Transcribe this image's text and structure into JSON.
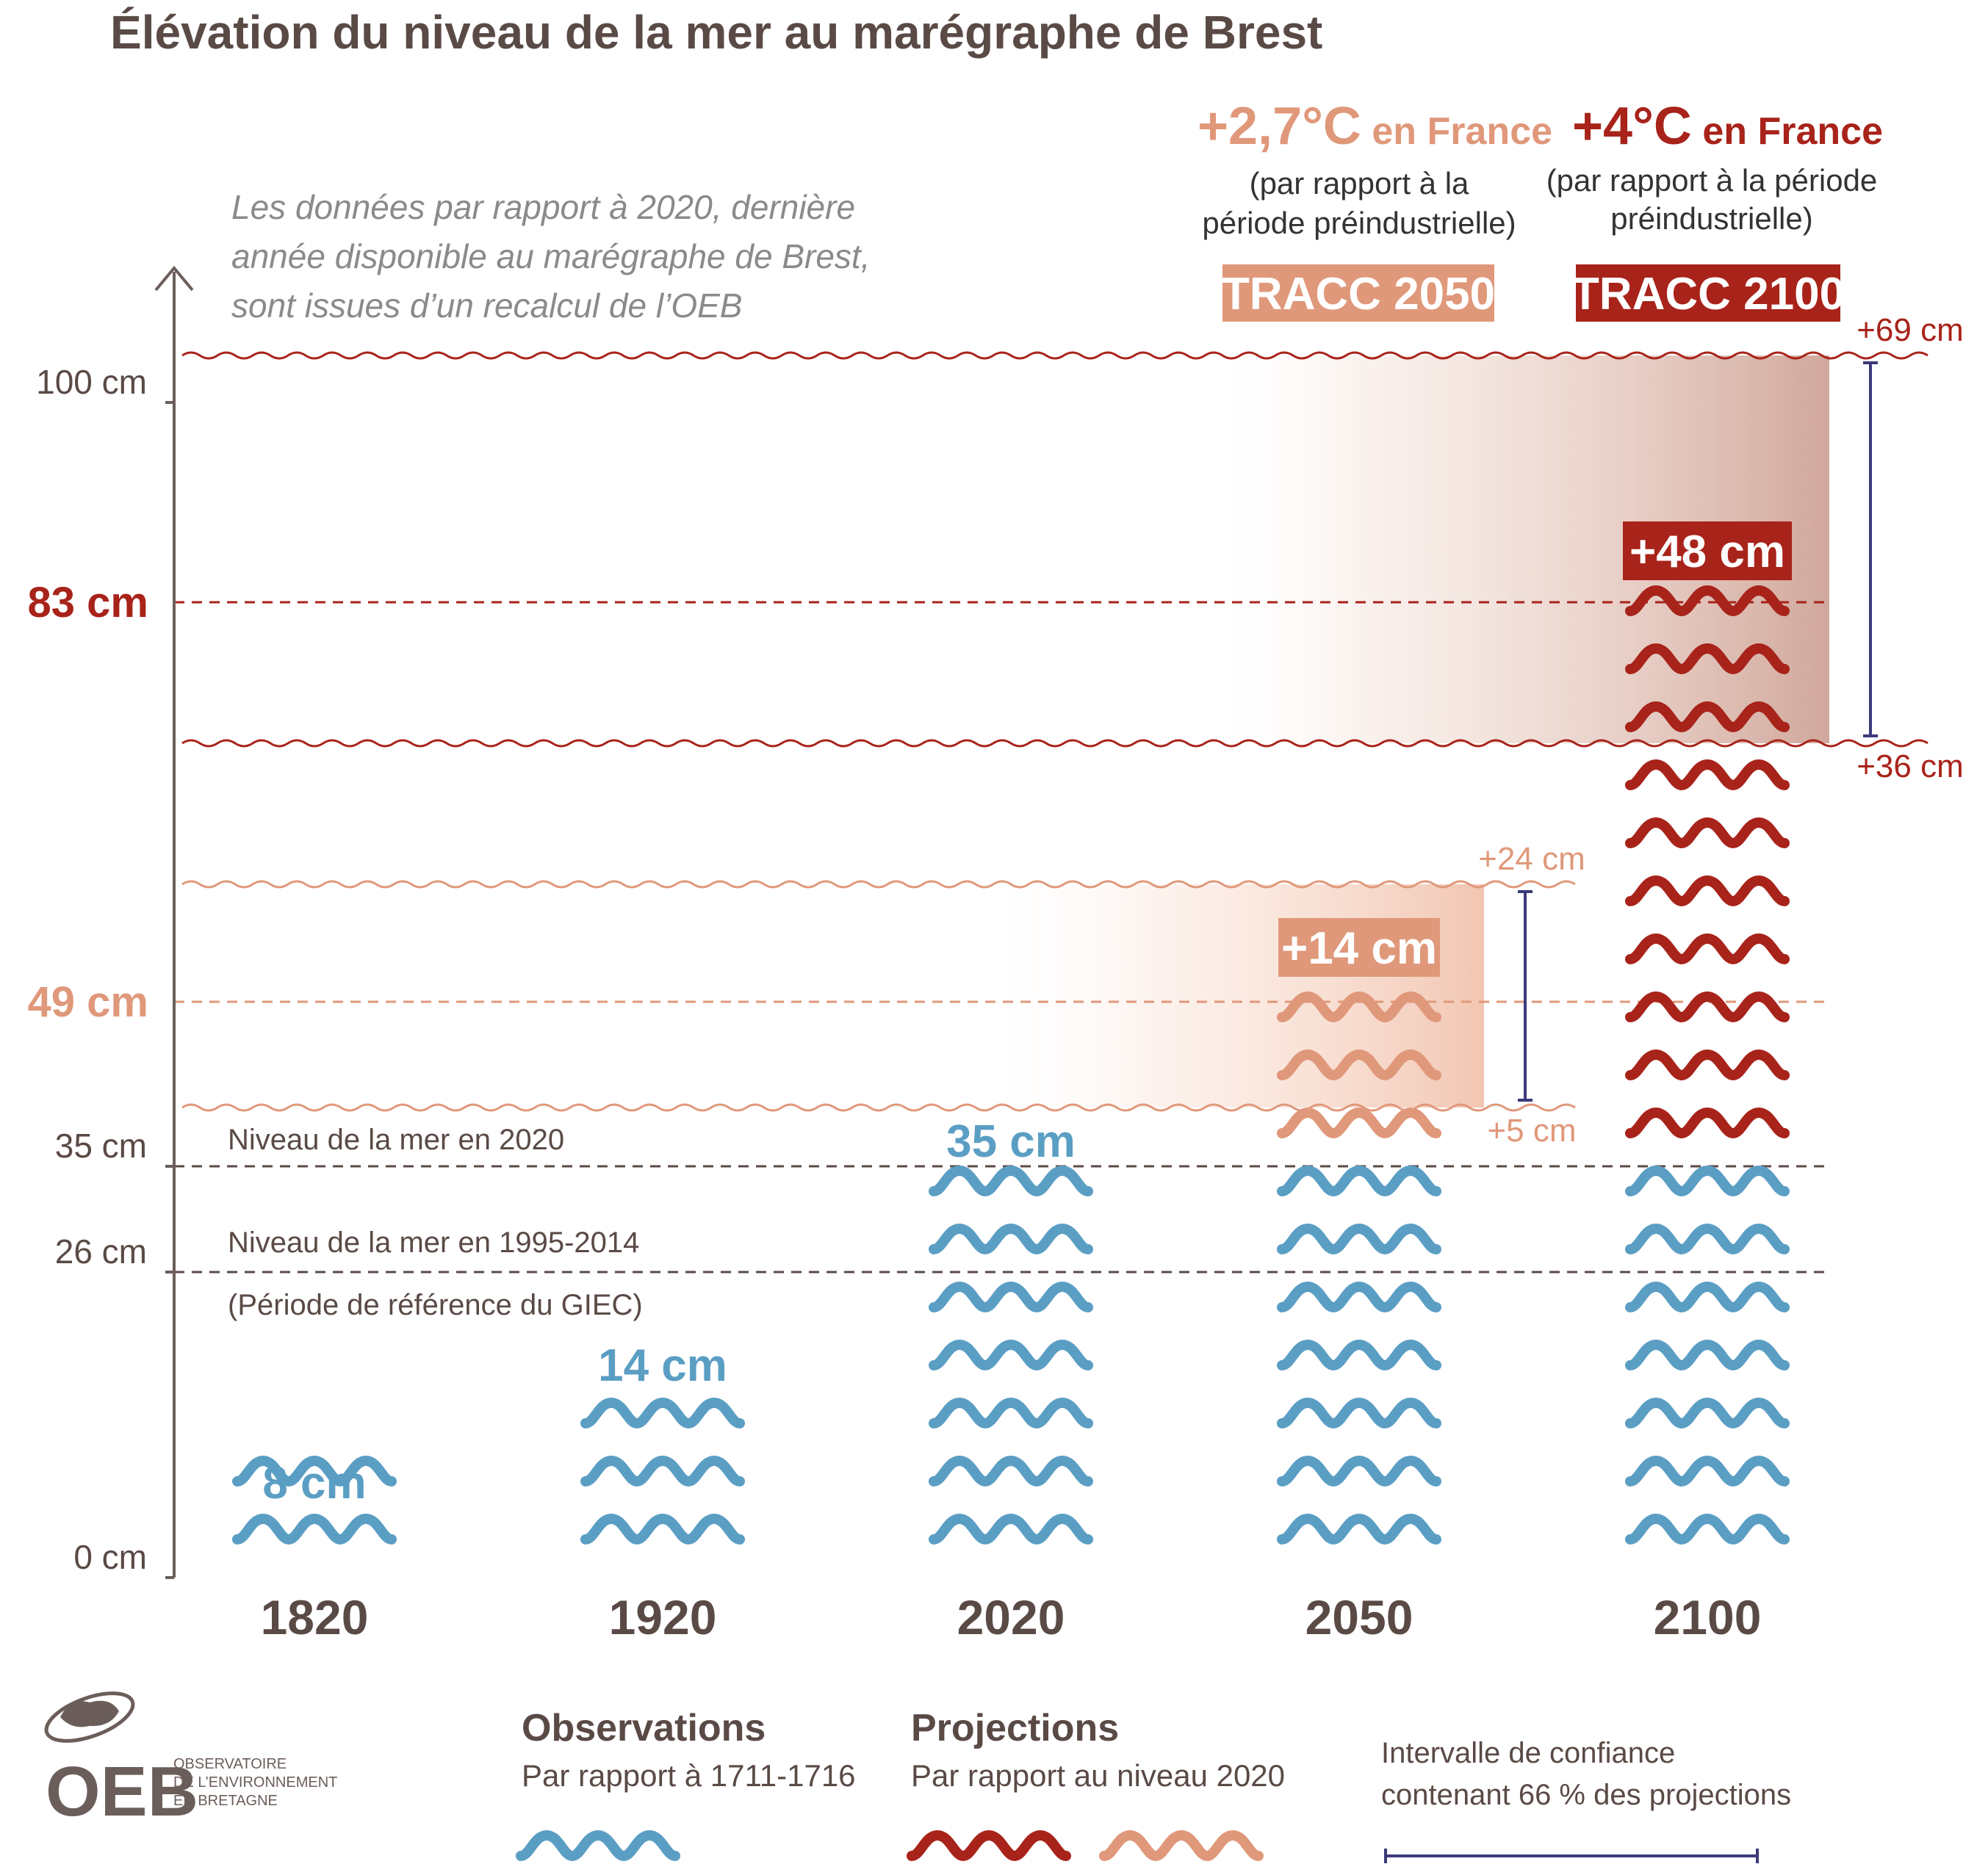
{
  "note": {
    "line1": "Les données par rapport à 2020, dernière",
    "line2": "année disponible au marégraphe de Brest,",
    "line3": "sont issues d’un recalcul de l’OEB"
  },
  "scenarios": [
    {
      "temp": "+2,7°C",
      "suffix": " en France",
      "ref1": "(par rapport à la",
      "ref2": "période préindustrielle)",
      "label": "TRACC 2050",
      "color": "#e0987a"
    },
    {
      "temp": "+4°C",
      "suffix": " en France",
      "ref1": "(par rapport à la période",
      "ref2": "préindustrielle)",
      "label": "TRACC 2100",
      "color": "#a8231a"
    }
  ],
  "references": [
    {
      "label": "Niveau de la mer en 2020",
      "value": 35
    },
    {
      "label": "Niveau de la mer en 1995-2014",
      "sublabel": "(Période de référence du GIEC)",
      "value": 26
    }
  ],
  "colors": {
    "observations": "#5b9ec4",
    "projection_2050": "#e0987a",
    "projection_2100": "#a8231a",
    "axis": "#6b5e5a",
    "interval": "#3a3a7a"
  },
  "legend": {
    "logo": "OEB",
    "org": [
      "OBSERVATOIRE",
      "DE L’ENVIRONNEMENT",
      "EN BRETAGNE"
    ],
    "obs_title": "Observations",
    "obs_sub": "Par rapport à 1711-1716",
    "proj_title": "Projections",
    "proj_sub": "Par rapport au niveau 2020",
    "interval_1": "Intervalle de confiance",
    "interval_2": "contenant 66 % des projections"
  },
  "chart_data": {
    "type": "bar",
    "title": "Élévation du niveau de la mer au marégraphe de Brest",
    "ylim": [
      0,
      100
    ],
    "y_ticks": [
      {
        "value": 0,
        "label": "0 cm",
        "style": "normal"
      },
      {
        "value": 26,
        "label": "26 cm",
        "style": "normal"
      },
      {
        "value": 35,
        "label": "35 cm",
        "style": "normal"
      },
      {
        "value": 49,
        "label": "49 cm",
        "style": "tracc2050"
      },
      {
        "value": 83,
        "label": "83 cm",
        "style": "tracc2100"
      },
      {
        "value": 100,
        "label": "100 cm",
        "style": "normal"
      }
    ],
    "categories": [
      "1820",
      "1920",
      "2020",
      "2050",
      "2100"
    ],
    "observations": [
      {
        "year": "1820",
        "value": 8,
        "label": "8 cm"
      },
      {
        "year": "1920",
        "value": 14,
        "label": "14 cm"
      },
      {
        "year": "2020",
        "value": 35,
        "label": "35 cm"
      }
    ],
    "projections": [
      {
        "year": "2050",
        "scenario": "TRACC 2050",
        "base": 35,
        "increase": 14,
        "value": 49,
        "label": "+14 cm",
        "low": 5,
        "high": 24,
        "low_label": "+5 cm",
        "high_label": "+24 cm"
      },
      {
        "year": "2100",
        "scenario": "TRACC 2100",
        "base": 35,
        "increase": 48,
        "value": 83,
        "label": "+48 cm",
        "low": 36,
        "high": 69,
        "low_label": "+36 cm",
        "high_label": "+69 cm"
      }
    ]
  }
}
